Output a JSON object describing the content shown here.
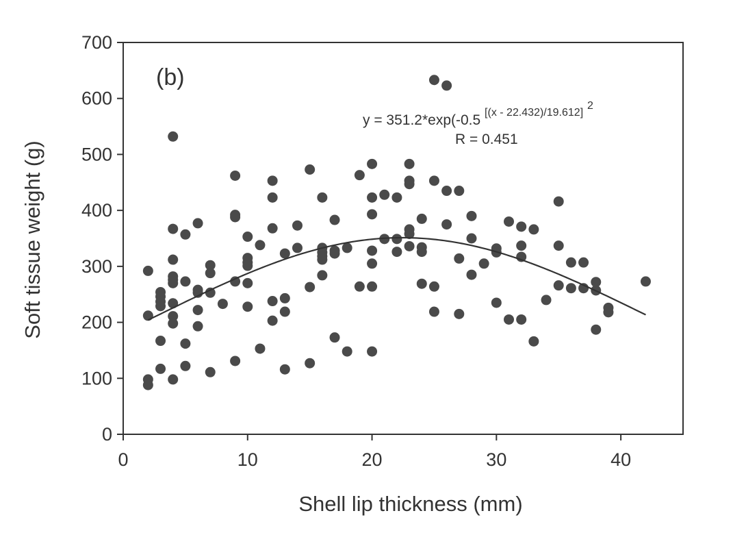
{
  "chart_data": {
    "type": "scatter",
    "panel_label": "(b)",
    "xlabel": "Shell lip thickness (mm)",
    "ylabel": "Soft tissue weight (g)",
    "xlim": [
      0,
      45
    ],
    "ylim": [
      0,
      700
    ],
    "x_ticks": [
      "0",
      "10",
      "20",
      "30",
      "40"
    ],
    "y_ticks": [
      "0",
      "100",
      "200",
      "300",
      "400",
      "500",
      "600",
      "700"
    ],
    "grid": false,
    "equation": {
      "main": "y = 351.2*exp(-0.5",
      "exponent": "[(x - 22.432)/19.612]",
      "power": "2",
      "r_text": "R = 0.451"
    },
    "fit": {
      "a": 351.2,
      "x0": 22.432,
      "b": 19.612,
      "x_range": [
        2,
        42
      ]
    },
    "points": [
      [
        2,
        292
      ],
      [
        2,
        212
      ],
      [
        2,
        98
      ],
      [
        2,
        88
      ],
      [
        3,
        254
      ],
      [
        3,
        246
      ],
      [
        3,
        237
      ],
      [
        3,
        229
      ],
      [
        3,
        167
      ],
      [
        3,
        117
      ],
      [
        4,
        532
      ],
      [
        4,
        367
      ],
      [
        4,
        312
      ],
      [
        4,
        282
      ],
      [
        4,
        276
      ],
      [
        4,
        270
      ],
      [
        4,
        234
      ],
      [
        4,
        211
      ],
      [
        4,
        198
      ],
      [
        4,
        98
      ],
      [
        5,
        357
      ],
      [
        5,
        273
      ],
      [
        5,
        162
      ],
      [
        5,
        122
      ],
      [
        6,
        377
      ],
      [
        6,
        258
      ],
      [
        6,
        253
      ],
      [
        6,
        222
      ],
      [
        6,
        193
      ],
      [
        7,
        302
      ],
      [
        7,
        288
      ],
      [
        7,
        253
      ],
      [
        7,
        111
      ],
      [
        8,
        233
      ],
      [
        9,
        462
      ],
      [
        9,
        392
      ],
      [
        9,
        388
      ],
      [
        9,
        273
      ],
      [
        9,
        131
      ],
      [
        10,
        353
      ],
      [
        10,
        315
      ],
      [
        10,
        307
      ],
      [
        10,
        301
      ],
      [
        10,
        270
      ],
      [
        10,
        228
      ],
      [
        11,
        338
      ],
      [
        11,
        153
      ],
      [
        12,
        453
      ],
      [
        12,
        423
      ],
      [
        12,
        368
      ],
      [
        12,
        238
      ],
      [
        12,
        203
      ],
      [
        13,
        323
      ],
      [
        13,
        243
      ],
      [
        13,
        219
      ],
      [
        13,
        116
      ],
      [
        14,
        373
      ],
      [
        14,
        333
      ],
      [
        15,
        473
      ],
      [
        15,
        263
      ],
      [
        15,
        127
      ],
      [
        16,
        423
      ],
      [
        16,
        333
      ],
      [
        16,
        325
      ],
      [
        16,
        318
      ],
      [
        16,
        312
      ],
      [
        16,
        284
      ],
      [
        17,
        383
      ],
      [
        17,
        328
      ],
      [
        17,
        323
      ],
      [
        17,
        173
      ],
      [
        18,
        333
      ],
      [
        18,
        148
      ],
      [
        19,
        463
      ],
      [
        19,
        264
      ],
      [
        20,
        483
      ],
      [
        20,
        423
      ],
      [
        20,
        393
      ],
      [
        20,
        328
      ],
      [
        20,
        305
      ],
      [
        20,
        264
      ],
      [
        20,
        148
      ],
      [
        21,
        428
      ],
      [
        21,
        349
      ],
      [
        22,
        423
      ],
      [
        22,
        349
      ],
      [
        22,
        326
      ],
      [
        23,
        483
      ],
      [
        23,
        453
      ],
      [
        23,
        447
      ],
      [
        23,
        366
      ],
      [
        23,
        358
      ],
      [
        23,
        336
      ],
      [
        24,
        385
      ],
      [
        24,
        334
      ],
      [
        24,
        326
      ],
      [
        24,
        269
      ],
      [
        25,
        633
      ],
      [
        25,
        453
      ],
      [
        25,
        264
      ],
      [
        25,
        219
      ],
      [
        26,
        623
      ],
      [
        26,
        435
      ],
      [
        26,
        375
      ],
      [
        27,
        435
      ],
      [
        27,
        314
      ],
      [
        27,
        215
      ],
      [
        28,
        390
      ],
      [
        28,
        350
      ],
      [
        28,
        285
      ],
      [
        29,
        305
      ],
      [
        30,
        332
      ],
      [
        30,
        325
      ],
      [
        30,
        235
      ],
      [
        31,
        380
      ],
      [
        31,
        205
      ],
      [
        32,
        371
      ],
      [
        32,
        337
      ],
      [
        32,
        317
      ],
      [
        32,
        205
      ],
      [
        33,
        366
      ],
      [
        33,
        166
      ],
      [
        34,
        240
      ],
      [
        35,
        416
      ],
      [
        35,
        337
      ],
      [
        35,
        266
      ],
      [
        36,
        307
      ],
      [
        36,
        261
      ],
      [
        37,
        307
      ],
      [
        37,
        261
      ],
      [
        38,
        272
      ],
      [
        38,
        257
      ],
      [
        38,
        187
      ],
      [
        39,
        226
      ],
      [
        39,
        218
      ],
      [
        42,
        273
      ]
    ]
  }
}
